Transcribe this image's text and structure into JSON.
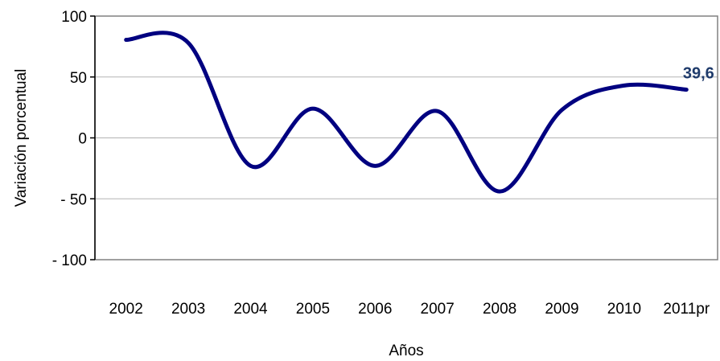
{
  "chart_data": {
    "type": "line",
    "title": "",
    "xlabel": "Años",
    "ylabel": "Variación porcentual",
    "categories": [
      "2002",
      "2003",
      "2004",
      "2005",
      "2006",
      "2007",
      "2008",
      "2009",
      "2010",
      "2011pr"
    ],
    "y_tick_labels": [
      "100",
      "50",
      "0",
      "- 50",
      "- 100"
    ],
    "y_ticks": [
      100,
      50,
      0,
      -50,
      -100
    ],
    "ylim": [
      -100,
      100
    ],
    "grid": "horizontal",
    "series": [
      {
        "values": [
          80.5,
          78,
          -23,
          24,
          -23,
          22,
          -44,
          23,
          43,
          39.6
        ],
        "color": "#000080",
        "smooth": true
      }
    ],
    "annotations": [
      {
        "category": "2011pr",
        "text": "39,6",
        "color": "#1F3B6B"
      }
    ]
  }
}
